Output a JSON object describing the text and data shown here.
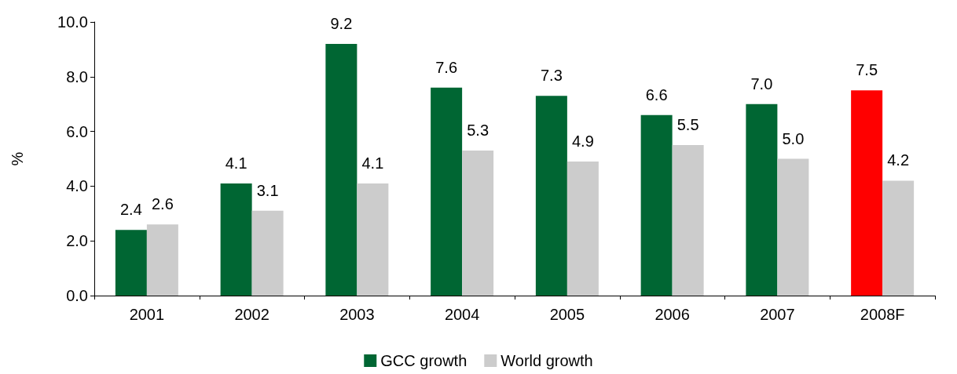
{
  "chart_data": {
    "type": "bar",
    "ylabel": "%",
    "categories": [
      "2001",
      "2002",
      "2003",
      "2004",
      "2005",
      "2006",
      "2007",
      "2008F"
    ],
    "series": [
      {
        "name": "GCC growth",
        "color": "#006633",
        "colors": [
          "#006633",
          "#006633",
          "#006633",
          "#006633",
          "#006633",
          "#006633",
          "#006633",
          "#ff0000"
        ],
        "values": [
          2.4,
          4.1,
          9.2,
          7.6,
          7.3,
          6.6,
          7.0,
          7.5
        ],
        "value_labels": [
          "2.4",
          "4.1",
          "9.2",
          "7.6",
          "7.3",
          "6.6",
          "7.0",
          "7.5"
        ]
      },
      {
        "name": "World growth",
        "color": "#cccccc",
        "values": [
          2.6,
          3.1,
          4.1,
          5.3,
          4.9,
          5.5,
          5.0,
          4.2
        ],
        "value_labels": [
          "2.6",
          "3.1",
          "4.1",
          "5.3",
          "4.9",
          "5.5",
          "5.0",
          "4.2"
        ]
      }
    ],
    "ylim": [
      0,
      10
    ],
    "yticks": [
      {
        "value": 0,
        "label": "0.0"
      },
      {
        "value": 2,
        "label": "2.0"
      },
      {
        "value": 4,
        "label": "4.0"
      },
      {
        "value": 6,
        "label": "6.0"
      },
      {
        "value": 8,
        "label": "8.0"
      },
      {
        "value": 10,
        "label": "10.0"
      }
    ],
    "grid": false,
    "legend": "bottom"
  }
}
